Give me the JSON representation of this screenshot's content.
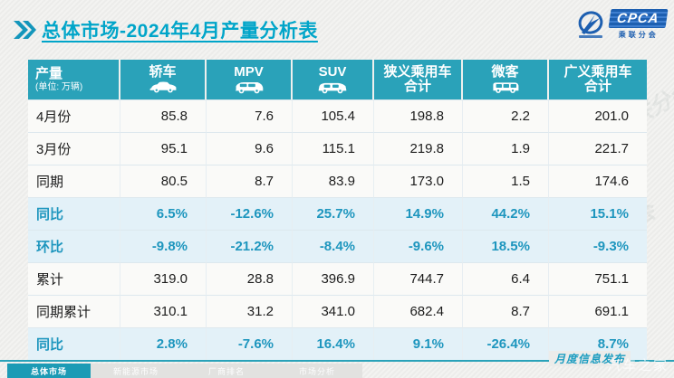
{
  "title": {
    "text": "总体市场-2024年4月产量分析表"
  },
  "logo": {
    "tagline": "CPCA",
    "subtext": "乘联分会"
  },
  "table": {
    "corner_title": "产量",
    "corner_subtitle": "(单位: 万辆)",
    "columns": [
      {
        "label": "轿车",
        "sublabel": "",
        "icon": "sedan-icon"
      },
      {
        "label": "MPV",
        "sublabel": "",
        "icon": "mpv-icon"
      },
      {
        "label": "SUV",
        "sublabel": "",
        "icon": "suv-icon"
      },
      {
        "label": "狭义乘用车",
        "sublabel": "合计",
        "icon": ""
      },
      {
        "label": "微客",
        "sublabel": "",
        "icon": "minibus-icon"
      },
      {
        "label": "广义乘用车",
        "sublabel": "合计",
        "icon": ""
      }
    ],
    "rows": [
      {
        "label": "4月份",
        "highlight": false,
        "values": [
          "85.8",
          "7.6",
          "105.4",
          "198.8",
          "2.2",
          "201.0"
        ]
      },
      {
        "label": "3月份",
        "highlight": false,
        "values": [
          "95.1",
          "9.6",
          "115.1",
          "219.8",
          "1.9",
          "221.7"
        ]
      },
      {
        "label": "同期",
        "highlight": false,
        "values": [
          "80.5",
          "8.7",
          "83.9",
          "173.0",
          "1.5",
          "174.6"
        ]
      },
      {
        "label": "同比",
        "highlight": true,
        "values": [
          "6.5%",
          "-12.6%",
          "25.7%",
          "14.9%",
          "44.2%",
          "15.1%"
        ]
      },
      {
        "label": "环比",
        "highlight": true,
        "values": [
          "-9.8%",
          "-21.2%",
          "-8.4%",
          "-9.6%",
          "18.5%",
          "-9.3%"
        ]
      },
      {
        "label": "累计",
        "highlight": false,
        "values": [
          "319.0",
          "28.8",
          "396.9",
          "744.7",
          "6.4",
          "751.1"
        ]
      },
      {
        "label": "同期累计",
        "highlight": false,
        "values": [
          "310.1",
          "31.2",
          "341.0",
          "682.4",
          "8.7",
          "691.1"
        ]
      },
      {
        "label": "同比",
        "highlight": true,
        "values": [
          "2.8%",
          "-7.6%",
          "16.4%",
          "9.1%",
          "-26.4%",
          "8.7%"
        ]
      }
    ]
  },
  "footer": {
    "publish_label": "月度信息发布",
    "tabs": [
      {
        "label": "总体市场",
        "active": true
      },
      {
        "label": "新能源市场",
        "active": false
      },
      {
        "label": "厂商排名",
        "active": false
      },
      {
        "label": "市场分析",
        "active": false
      }
    ]
  },
  "watermark": {
    "cpca": "CPCA 乘联分会",
    "site": "汽车之家"
  },
  "colors": {
    "accent_teal": "#2AA2B9",
    "title_cyan": "#00A5C9",
    "highlight_bg": "#E3F1F8",
    "highlight_text": "#1E96BE",
    "logo_blue": "#1D5FB0"
  },
  "chart_data": {
    "type": "table",
    "title": "总体市场-2024年4月产量分析表",
    "unit": "万辆",
    "row_header": "产量",
    "columns": [
      "轿车",
      "MPV",
      "SUV",
      "狭义乘用车合计",
      "微客",
      "广义乘用车合计"
    ],
    "rows": [
      {
        "label": "4月份",
        "values": [
          85.8,
          7.6,
          105.4,
          198.8,
          2.2,
          201.0
        ]
      },
      {
        "label": "3月份",
        "values": [
          95.1,
          9.6,
          115.1,
          219.8,
          1.9,
          221.7
        ]
      },
      {
        "label": "同期",
        "values": [
          80.5,
          8.7,
          83.9,
          173.0,
          1.5,
          174.6
        ]
      },
      {
        "label": "同比",
        "values": [
          "6.5%",
          "-12.6%",
          "25.7%",
          "14.9%",
          "44.2%",
          "15.1%"
        ]
      },
      {
        "label": "环比",
        "values": [
          "-9.8%",
          "-21.2%",
          "-8.4%",
          "-9.6%",
          "18.5%",
          "-9.3%"
        ]
      },
      {
        "label": "累计",
        "values": [
          319.0,
          28.8,
          396.9,
          744.7,
          6.4,
          751.1
        ]
      },
      {
        "label": "同期累计",
        "values": [
          310.1,
          31.2,
          341.0,
          682.4,
          8.7,
          691.1
        ]
      },
      {
        "label": "同比",
        "values": [
          "2.8%",
          "-7.6%",
          "16.4%",
          "9.1%",
          "-26.4%",
          "8.7%"
        ]
      }
    ]
  }
}
